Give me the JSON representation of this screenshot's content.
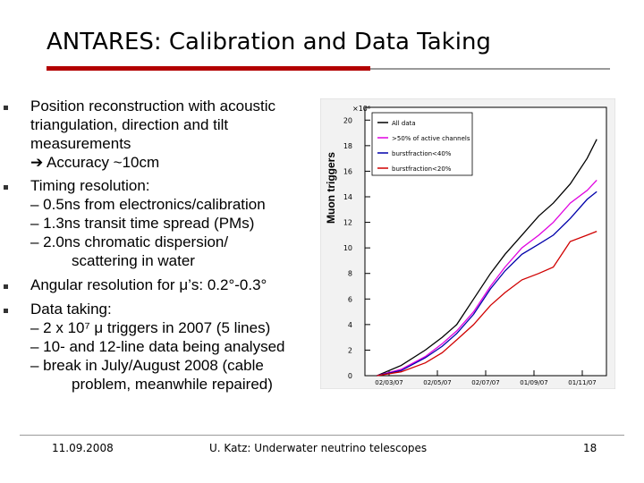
{
  "slide": {
    "title": "ANTARES: Calibration and Data Taking",
    "bullets": [
      {
        "lines": [
          "Position reconstruction with acoustic",
          "triangulation, direction and tilt",
          "measurements",
          "➔ Accuracy ~10cm"
        ]
      },
      {
        "lines": [
          "Timing resolution:",
          "– 0.5ns from electronics/calibration",
          "– 1.3ns transit time spread (PMs)",
          "– 2.0ns chromatic dispersion/",
          "scattering in water"
        ]
      },
      {
        "lines": [
          "Angular resolution for μ’s: 0.2°-0.3°"
        ]
      },
      {
        "lines": [
          "Data taking:",
          "– 2 x 10⁷ μ triggers in 2007 (5 lines)",
          "– 10- and 12-line data being analysed",
          "– break in July/August 2008 (cable",
          "problem, meanwhile repaired)"
        ]
      }
    ],
    "footer": {
      "date": "11.09.2008",
      "center": "U. Katz: Underwater neutrino telescopes",
      "page": "18"
    }
  },
  "chart_data": {
    "type": "line",
    "ylabel": "Muon triggers",
    "yexp": "×10⁶",
    "ylim": [
      0,
      21
    ],
    "yticks": [
      "0",
      "2",
      "4",
      "6",
      "8",
      "10",
      "12",
      "14",
      "16",
      "18",
      "20"
    ],
    "xticks": [
      "02/03/07",
      "02/05/07",
      "02/07/07",
      "01/09/07",
      "01/11/07"
    ],
    "xtick_pos": [
      0.1,
      0.3,
      0.5,
      0.7,
      0.9
    ],
    "grid": false,
    "legend_position": "top-left",
    "colors": {
      "all": "#000000",
      "half": "#e000e0",
      "b40": "#0000aa",
      "b20": "#d00000"
    },
    "series": [
      {
        "name": "All data",
        "color": "#000000",
        "x": [
          0.05,
          0.15,
          0.25,
          0.32,
          0.38,
          0.45,
          0.52,
          0.58,
          0.65,
          0.72,
          0.78,
          0.85,
          0.92,
          0.96
        ],
        "y": [
          0,
          0.8,
          2,
          3,
          4,
          6,
          8,
          9.5,
          11,
          12.5,
          13.5,
          15,
          17,
          18.5
        ]
      },
      {
        "name": ">50% of active channels",
        "color": "#e000e0",
        "x": [
          0.05,
          0.15,
          0.25,
          0.32,
          0.38,
          0.45,
          0.52,
          0.58,
          0.65,
          0.72,
          0.78,
          0.85,
          0.92,
          0.96
        ],
        "y": [
          0,
          0.5,
          1.5,
          2.5,
          3.5,
          5,
          7,
          8.5,
          10,
          11,
          12,
          13.5,
          14.5,
          15.3
        ]
      },
      {
        "name": "burstfraction<40%",
        "color": "#0000aa",
        "x": [
          0.05,
          0.15,
          0.25,
          0.32,
          0.38,
          0.45,
          0.52,
          0.58,
          0.65,
          0.72,
          0.78,
          0.85,
          0.92,
          0.96
        ],
        "y": [
          0,
          0.4,
          1.4,
          2.3,
          3.3,
          4.8,
          6.8,
          8.2,
          9.5,
          10.3,
          11,
          12.3,
          13.8,
          14.4
        ]
      },
      {
        "name": "burstfraction<20%",
        "color": "#d00000",
        "x": [
          0.05,
          0.15,
          0.25,
          0.32,
          0.38,
          0.45,
          0.52,
          0.58,
          0.65,
          0.72,
          0.78,
          0.85,
          0.92,
          0.96
        ],
        "y": [
          0,
          0.3,
          1,
          1.8,
          2.8,
          4,
          5.5,
          6.5,
          7.5,
          8,
          8.5,
          10.5,
          11,
          11.3
        ]
      }
    ]
  }
}
